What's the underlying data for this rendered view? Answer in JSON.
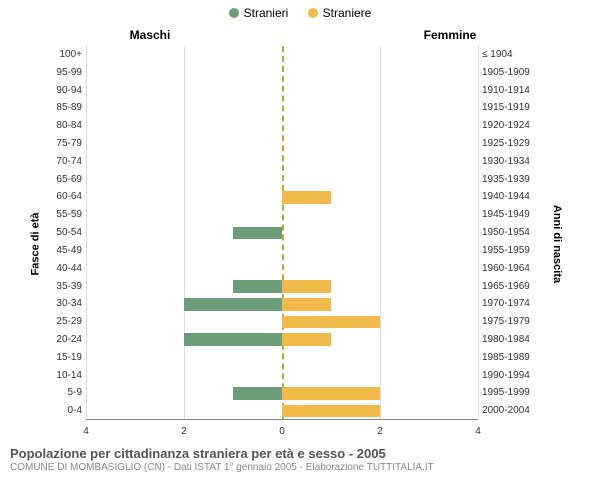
{
  "legend": {
    "male": {
      "label": "Stranieri",
      "color": "#6b9e78"
    },
    "female": {
      "label": "Straniere",
      "color": "#f0b94a"
    }
  },
  "headers": {
    "left": "Maschi",
    "right": "Femmine"
  },
  "axis": {
    "left_title": "Fasce di età",
    "right_title": "Anni di nascita",
    "xmax": 4,
    "tick_step": 2,
    "center_line_color": "#bfa82f",
    "grid_color": "#dddddd",
    "bg": "#ffffff"
  },
  "rows": [
    {
      "age": "100+",
      "birth": "≤ 1904",
      "m": 0,
      "f": 0
    },
    {
      "age": "95-99",
      "birth": "1905-1909",
      "m": 0,
      "f": 0
    },
    {
      "age": "90-94",
      "birth": "1910-1914",
      "m": 0,
      "f": 0
    },
    {
      "age": "85-89",
      "birth": "1915-1919",
      "m": 0,
      "f": 0
    },
    {
      "age": "80-84",
      "birth": "1920-1924",
      "m": 0,
      "f": 0
    },
    {
      "age": "75-79",
      "birth": "1925-1929",
      "m": 0,
      "f": 0
    },
    {
      "age": "70-74",
      "birth": "1930-1934",
      "m": 0,
      "f": 0
    },
    {
      "age": "65-69",
      "birth": "1935-1939",
      "m": 0,
      "f": 0
    },
    {
      "age": "60-64",
      "birth": "1940-1944",
      "m": 0,
      "f": 1
    },
    {
      "age": "55-59",
      "birth": "1945-1949",
      "m": 0,
      "f": 0
    },
    {
      "age": "50-54",
      "birth": "1950-1954",
      "m": 1,
      "f": 0
    },
    {
      "age": "45-49",
      "birth": "1955-1959",
      "m": 0,
      "f": 0
    },
    {
      "age": "40-44",
      "birth": "1960-1964",
      "m": 0,
      "f": 0
    },
    {
      "age": "35-39",
      "birth": "1965-1969",
      "m": 1,
      "f": 1
    },
    {
      "age": "30-34",
      "birth": "1970-1974",
      "m": 2,
      "f": 1
    },
    {
      "age": "25-29",
      "birth": "1975-1979",
      "m": 0,
      "f": 2
    },
    {
      "age": "20-24",
      "birth": "1980-1984",
      "m": 2,
      "f": 1
    },
    {
      "age": "15-19",
      "birth": "1985-1989",
      "m": 0,
      "f": 0
    },
    {
      "age": "10-14",
      "birth": "1990-1994",
      "m": 0,
      "f": 0
    },
    {
      "age": "5-9",
      "birth": "1995-1999",
      "m": 1,
      "f": 2
    },
    {
      "age": "0-4",
      "birth": "2000-2004",
      "m": 0,
      "f": 2
    }
  ],
  "footer": {
    "title": "Popolazione per cittadinanza straniera per età e sesso - 2005",
    "subtitle": "COMUNE DI MOMBASIGLIO (CN) - Dati ISTAT 1° gennaio 2005 - Elaborazione TUTTITALIA.IT"
  },
  "style": {
    "title_fontsize": 13,
    "sub_fontsize": 10,
    "label_fontsize": 10,
    "legend_fontsize": 12,
    "header_fontsize": 12
  }
}
